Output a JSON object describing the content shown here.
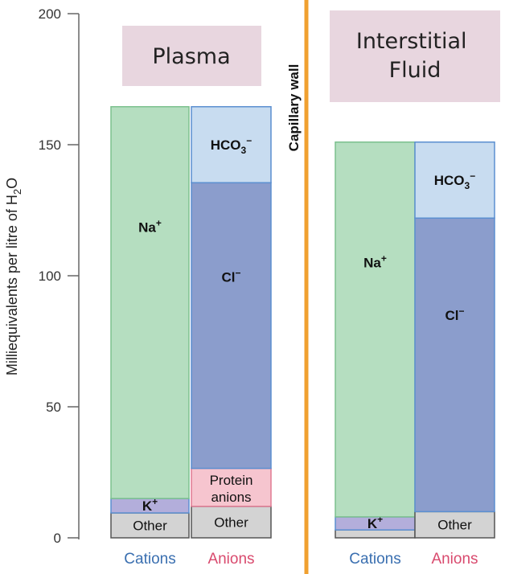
{
  "chart_data": {
    "type": "bar",
    "stacked": true,
    "y_axis": {
      "label_prefix": "Milliequivalents per litre of H",
      "label_sub": "2",
      "label_suffix": "O",
      "ylim": [
        0,
        200
      ],
      "ticks": [
        {
          "value": 0,
          "label": "0"
        },
        {
          "value": 50,
          "label": "50"
        },
        {
          "value": 100,
          "label": "100"
        },
        {
          "value": 150,
          "label": "150"
        },
        {
          "value": 200,
          "label": "200"
        }
      ]
    },
    "divider_label": "Capillary wall",
    "panels": [
      {
        "title": "Plasma",
        "bars": [
          {
            "category": "Cations",
            "category_color": "#3a6fb0",
            "segments": [
              {
                "label": "Other",
                "value": 9.5,
                "fill": "#d3d3d3",
                "bold": false
              },
              {
                "label": "K+",
                "value": 5.5,
                "fill": "#b3aedb",
                "bold": true
              },
              {
                "label": "Na+",
                "value": 149.5,
                "fill": "#b5dec0",
                "bold": true
              }
            ]
          },
          {
            "category": "Anions",
            "category_color": "#d94a6e",
            "segments": [
              {
                "label": "Other",
                "value": 12,
                "fill": "#d3d3d3",
                "bold": false
              },
              {
                "label": "Protein anions",
                "value": 14.5,
                "fill": "#f6c5cf",
                "bold": false
              },
              {
                "label": "Cl−",
                "value": 109,
                "fill": "#8b9dcc",
                "bold": true
              },
              {
                "label": "HCO3−",
                "value": 29,
                "fill": "#c8dcf0",
                "bold": true
              }
            ]
          }
        ]
      },
      {
        "title": "Interstitial Fluid",
        "bars": [
          {
            "category": "Cations",
            "category_color": "#3a6fb0",
            "segments": [
              {
                "label": "",
                "value": 3,
                "fill": "#d3d3d3",
                "bold": false
              },
              {
                "label": "K+",
                "value": 5,
                "fill": "#b3aedb",
                "bold": true
              },
              {
                "label": "Na+",
                "value": 143,
                "fill": "#b5dec0",
                "bold": true
              }
            ]
          },
          {
            "category": "Anions",
            "category_color": "#d94a6e",
            "segments": [
              {
                "label": "Other",
                "value": 10,
                "fill": "#d3d3d3",
                "bold": false
              },
              {
                "label": "Cl−",
                "value": 112,
                "fill": "#8b9dcc",
                "bold": true
              },
              {
                "label": "HCO3−",
                "value": 29,
                "fill": "#c8dcf0",
                "bold": true
              }
            ]
          }
        ]
      }
    ]
  }
}
